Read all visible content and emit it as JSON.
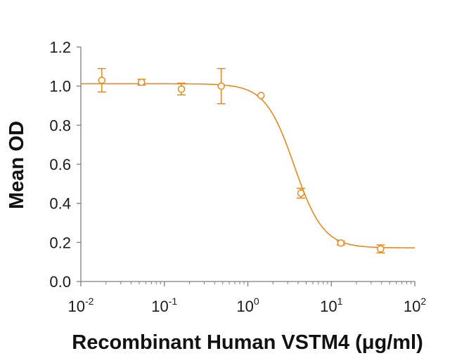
{
  "chart_data": {
    "type": "scatter",
    "xlabel": "Recombinant Human VSTM4 (μg/ml)",
    "ylabel": "Mean OD",
    "x_scale": "log",
    "xlim": [
      0.01,
      100
    ],
    "ylim": [
      0,
      1.2
    ],
    "x_ticks": [
      {
        "base": "10",
        "exp": "-2"
      },
      {
        "base": "10",
        "exp": "-1"
      },
      {
        "base": "10",
        "exp": "0"
      },
      {
        "base": "10",
        "exp": "1"
      },
      {
        "base": "10",
        "exp": "2"
      }
    ],
    "y_ticks": [
      "0.0",
      "0.2",
      "0.4",
      "0.6",
      "0.8",
      "1.0",
      "1.2"
    ],
    "grid": false,
    "color": "#E8891E",
    "series": [
      {
        "marker": "open-circle",
        "points": [
          {
            "x": 0.0178,
            "y": 1.03,
            "err": 0.06
          },
          {
            "x": 0.0533,
            "y": 1.02,
            "err": 0.015
          },
          {
            "x": 0.16,
            "y": 0.985,
            "err": 0.03
          },
          {
            "x": 0.48,
            "y": 1.0,
            "err": 0.09
          },
          {
            "x": 1.44,
            "y": 0.952,
            "err": 0.0
          },
          {
            "x": 4.32,
            "y": 0.452,
            "err": 0.025
          },
          {
            "x": 13.0,
            "y": 0.197,
            "err": 0.01
          },
          {
            "x": 38.9,
            "y": 0.167,
            "err": 0.02
          }
        ]
      }
    ],
    "fit_curve": {
      "bottom": 0.172,
      "top": 1.012,
      "ec50": 3.6,
      "hill": 2.5
    }
  }
}
